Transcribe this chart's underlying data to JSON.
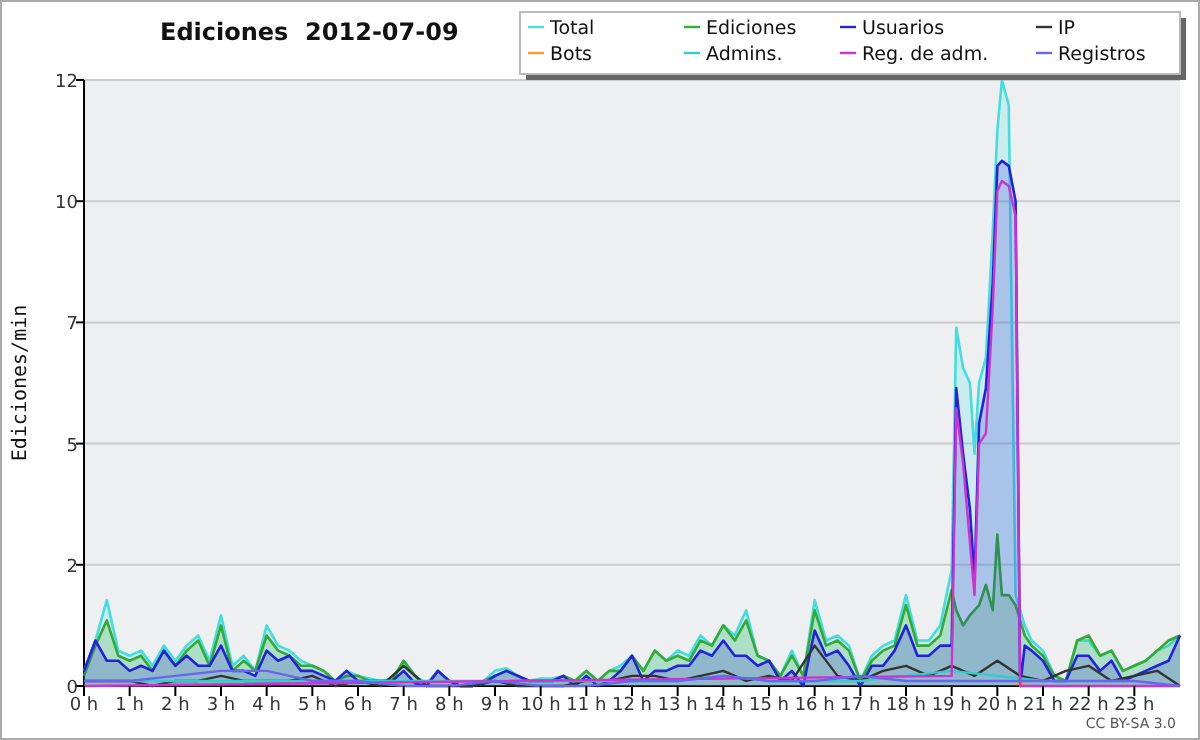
{
  "chart_data": {
    "type": "line",
    "title": "Ediciones  2012-07-09",
    "ylabel": "Ediciones/min",
    "annotations": [
      "CC BY-SA 3.0"
    ],
    "x": [
      0,
      0.25,
      0.5,
      0.75,
      1,
      1.25,
      1.5,
      1.75,
      2,
      2.25,
      2.5,
      2.75,
      3,
      3.25,
      3.5,
      3.75,
      4,
      4.25,
      4.5,
      4.75,
      5,
      5.25,
      5.5,
      5.75,
      6,
      6.25,
      6.5,
      6.75,
      7,
      7.25,
      7.5,
      7.75,
      8,
      8.25,
      8.5,
      8.75,
      9,
      9.25,
      9.5,
      9.75,
      10,
      10.25,
      10.5,
      10.75,
      11,
      11.25,
      11.5,
      11.75,
      12,
      12.25,
      12.5,
      12.75,
      13,
      13.25,
      13.5,
      13.75,
      14,
      14.25,
      14.5,
      14.75,
      15,
      15.25,
      15.5,
      15.75,
      16,
      16.25,
      16.5,
      16.75,
      17,
      17.25,
      17.5,
      17.75,
      18,
      18.25,
      18.5,
      18.75,
      19,
      19.1,
      19.25,
      19.4,
      19.5,
      19.6,
      19.75,
      19.9,
      20,
      20.1,
      20.25,
      20.4,
      20.5,
      20.6,
      20.75,
      21,
      21.25,
      21.5,
      21.75,
      22,
      22.25,
      22.5,
      22.75,
      23,
      23.25,
      23.5,
      23.75,
      24
    ],
    "series": [
      {
        "name": "Total",
        "type": "area",
        "color": "#44dddd",
        "values": [
          0.3,
          0.9,
          1.7,
          0.7,
          0.6,
          0.7,
          0.4,
          0.8,
          0.5,
          0.8,
          1.0,
          0.5,
          1.4,
          0.4,
          0.6,
          0.3,
          1.2,
          0.8,
          0.7,
          0.5,
          0.4,
          0.3,
          0.1,
          0.3,
          0.2,
          0.15,
          0.1,
          0.15,
          0.5,
          0.2,
          0.05,
          0.3,
          0.1,
          0,
          0,
          0.1,
          0.3,
          0.35,
          0.2,
          0.1,
          0.15,
          0.15,
          0.2,
          0.1,
          0.3,
          0.1,
          0.3,
          0.4,
          0.6,
          0.3,
          0.7,
          0.5,
          0.7,
          0.6,
          1.0,
          0.8,
          1.2,
          1.0,
          1.5,
          0.6,
          0.5,
          0.2,
          0.7,
          0.2,
          1.7,
          0.9,
          1.0,
          0.8,
          0.1,
          0.6,
          0.8,
          0.9,
          1.8,
          0.9,
          0.9,
          1.2,
          2.3,
          7.1,
          6.3,
          6.0,
          4.6,
          6.0,
          6.5,
          9.0,
          11.0,
          12.0,
          11.5,
          1.8,
          1.5,
          1.2,
          0.9,
          0.7,
          0.2,
          0.1,
          0.9,
          0.9,
          0.6,
          0.7,
          0.3,
          0.4,
          0.5,
          0.7,
          0.8,
          1.0
        ]
      },
      {
        "name": "Ediciones",
        "type": "area",
        "color": "#33aa33",
        "values": [
          0.2,
          0.8,
          1.3,
          0.6,
          0.5,
          0.6,
          0.3,
          0.7,
          0.4,
          0.7,
          0.9,
          0.4,
          1.2,
          0.3,
          0.5,
          0.3,
          1.0,
          0.7,
          0.6,
          0.4,
          0.4,
          0.3,
          0.1,
          0.2,
          0.2,
          0.1,
          0.1,
          0.1,
          0.5,
          0.2,
          0,
          0.3,
          0.1,
          0,
          0,
          0.1,
          0.2,
          0.3,
          0.2,
          0.1,
          0.1,
          0.1,
          0.2,
          0.1,
          0.3,
          0.1,
          0.3,
          0.3,
          0.6,
          0.3,
          0.7,
          0.5,
          0.6,
          0.5,
          0.9,
          0.8,
          1.2,
          0.9,
          1.3,
          0.6,
          0.5,
          0.2,
          0.6,
          0.2,
          1.5,
          0.8,
          0.9,
          0.7,
          0.1,
          0.5,
          0.7,
          0.8,
          1.6,
          0.8,
          0.8,
          1.0,
          1.9,
          1.5,
          1.2,
          1.4,
          1.5,
          1.6,
          2.0,
          1.5,
          3.0,
          1.8,
          1.8,
          1.6,
          1.3,
          1.0,
          0.8,
          0.6,
          0.2,
          0.1,
          0.9,
          1.0,
          0.6,
          0.7,
          0.3,
          0.4,
          0.5,
          0.7,
          0.9,
          1.0
        ]
      },
      {
        "name": "Usuarios",
        "type": "area",
        "color": "#2222dd",
        "values": [
          0.3,
          0.9,
          0.5,
          0.5,
          0.3,
          0.4,
          0.3,
          0.7,
          0.4,
          0.6,
          0.4,
          0.4,
          0.8,
          0.3,
          0.3,
          0.2,
          0.7,
          0.5,
          0.6,
          0.3,
          0.3,
          0.2,
          0.1,
          0.3,
          0.1,
          0.1,
          0.1,
          0.1,
          0.3,
          0.05,
          0,
          0.3,
          0.1,
          0,
          0,
          0.05,
          0.2,
          0.3,
          0.2,
          0.1,
          0.1,
          0.1,
          0.2,
          0,
          0.2,
          0,
          0.1,
          0.3,
          0.6,
          0.1,
          0.3,
          0.3,
          0.4,
          0.4,
          0.7,
          0.6,
          0.9,
          0.6,
          0.6,
          0.4,
          0.5,
          0.1,
          0.3,
          0,
          1.1,
          0.6,
          0.7,
          0.4,
          0,
          0.4,
          0.4,
          0.7,
          1.2,
          0.6,
          0.6,
          0.8,
          0.8,
          5.9,
          4.6,
          3.5,
          2.1,
          5.2,
          5.9,
          8.0,
          10.3,
          10.4,
          10.3,
          9.6,
          0,
          0.8,
          0.7,
          0.5,
          0.1,
          0.1,
          0.6,
          0.6,
          0.3,
          0.5,
          0.1,
          0.2,
          0.3,
          0.4,
          0.5,
          1.0
        ]
      },
      {
        "name": "IP",
        "color": "#333333",
        "x": [
          0,
          0.5,
          1,
          1.5,
          2,
          2.5,
          3,
          3.5,
          4,
          4.5,
          5,
          5.5,
          6,
          6.5,
          7,
          7.5,
          8,
          8.5,
          9,
          9.5,
          10,
          10.5,
          11,
          11.5,
          12,
          12.5,
          13,
          13.5,
          14,
          14.5,
          15,
          15.5,
          16,
          16.5,
          17,
          17.5,
          18,
          18.5,
          19,
          19.5,
          20,
          20.5,
          21,
          21.5,
          22,
          22.5,
          23,
          23.5,
          24
        ],
        "values": [
          0.1,
          0.1,
          0.1,
          0,
          0.1,
          0.1,
          0.2,
          0.1,
          0.1,
          0.1,
          0.2,
          0,
          0.1,
          0,
          0.4,
          0,
          0,
          0,
          0.1,
          0,
          0,
          0,
          0.1,
          0.1,
          0.2,
          0.2,
          0.1,
          0.2,
          0.3,
          0.1,
          0.2,
          0.1,
          0.8,
          0.2,
          0.1,
          0.3,
          0.4,
          0.2,
          0.4,
          0.2,
          0.5,
          0.2,
          0.1,
          0.3,
          0.4,
          0.1,
          0.2,
          0.3,
          0
        ]
      },
      {
        "name": "Bots",
        "color": "#ff9933",
        "x": [
          20.4,
          20.6
        ],
        "values": [
          0.05,
          0.05
        ]
      },
      {
        "name": "Admins.",
        "color": "#33cccc",
        "x": [
          1,
          2,
          3,
          4,
          12,
          13,
          14,
          15,
          16,
          17,
          18,
          19,
          20,
          21,
          22,
          23
        ],
        "values": [
          0.1,
          0.1,
          0.1,
          0.1,
          0.1,
          0.1,
          0.2,
          0.1,
          0.1,
          0.1,
          0.2,
          0.3,
          0.2,
          0.1,
          0.1,
          0.1
        ]
      },
      {
        "name": "Reg. de adm.",
        "color": "#cc33cc",
        "x": [
          0,
          19,
          19.1,
          19.25,
          19.5,
          19.6,
          19.75,
          19.9,
          20,
          20.1,
          20.25,
          20.4,
          20.5,
          24
        ],
        "values": [
          0,
          0.2,
          5.5,
          4.4,
          1.8,
          4.8,
          5.0,
          7.5,
          9.8,
          10.0,
          9.9,
          9.3,
          0,
          0
        ]
      },
      {
        "name": "Registros",
        "color": "#6666ee",
        "x": [
          0,
          1,
          2,
          3,
          4,
          5,
          6,
          7,
          8,
          9,
          10,
          11,
          12,
          13,
          14,
          15,
          16,
          17,
          18,
          19,
          20,
          21,
          22,
          23,
          24
        ],
        "values": [
          0.1,
          0.1,
          0.2,
          0.3,
          0.3,
          0.1,
          0.1,
          0,
          0,
          0.1,
          0,
          0,
          0.1,
          0.1,
          0.2,
          0.1,
          0.1,
          0.2,
          0.1,
          0.1,
          0.1,
          0.1,
          0.1,
          0.1,
          0
        ]
      }
    ],
    "xlim": [
      0,
      24
    ],
    "xticks": [
      {
        "value": 0,
        "label": "0 h"
      },
      {
        "value": 1,
        "label": "1 h"
      },
      {
        "value": 2,
        "label": "2 h"
      },
      {
        "value": 3,
        "label": "3 h"
      },
      {
        "value": 4,
        "label": "4 h"
      },
      {
        "value": 5,
        "label": "5 h"
      },
      {
        "value": 6,
        "label": "6 h"
      },
      {
        "value": 7,
        "label": "7 h"
      },
      {
        "value": 8,
        "label": "8 h"
      },
      {
        "value": 9,
        "label": "9 h"
      },
      {
        "value": 10,
        "label": "10 h"
      },
      {
        "value": 11,
        "label": "11 h"
      },
      {
        "value": 12,
        "label": "12 h"
      },
      {
        "value": 13,
        "label": "13 h"
      },
      {
        "value": 14,
        "label": "14 h"
      },
      {
        "value": 15,
        "label": "15 h"
      },
      {
        "value": 16,
        "label": "16 h"
      },
      {
        "value": 17,
        "label": "17 h"
      },
      {
        "value": 18,
        "label": "18 h"
      },
      {
        "value": 19,
        "label": "19 h"
      },
      {
        "value": 20,
        "label": "20 h"
      },
      {
        "value": 21,
        "label": "21 h"
      },
      {
        "value": 22,
        "label": "22 h"
      },
      {
        "value": 23,
        "label": "23 h"
      }
    ],
    "ylim": [
      0,
      12
    ],
    "yticks": [
      0,
      {
        "value": 2.4,
        "label": "2"
      },
      {
        "value": 4.8,
        "label": "5"
      },
      {
        "value": 7.2,
        "label": "7"
      },
      {
        "value": 9.6,
        "label": "10"
      },
      12
    ],
    "grid": "y",
    "legend": "top right"
  }
}
